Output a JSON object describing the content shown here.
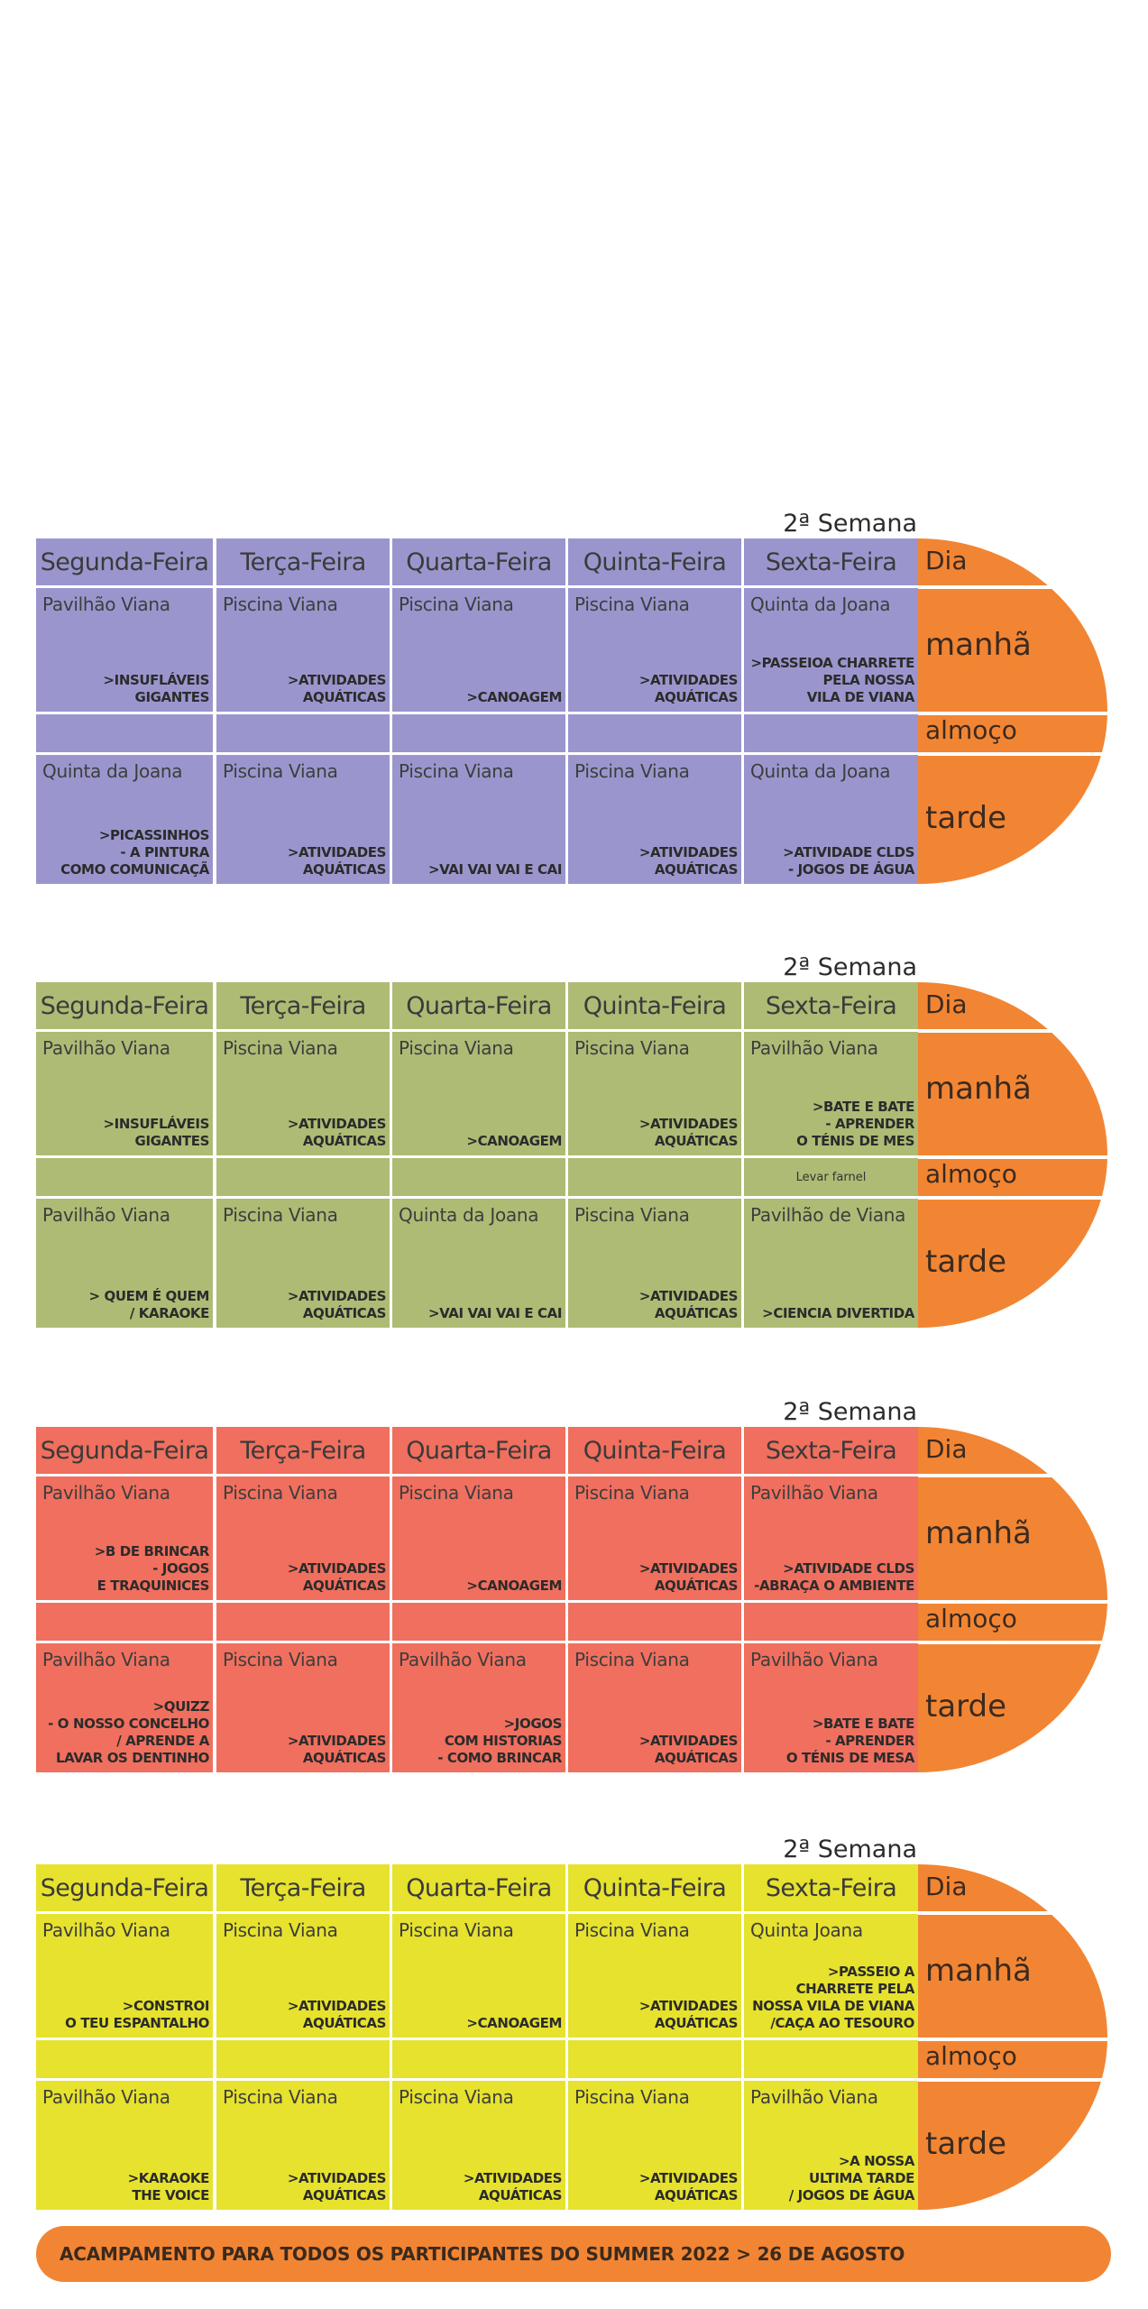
{
  "colors": {
    "orange": "#f28533",
    "week_colors": [
      "#9a96cd",
      "#adbb75",
      "#f06f5e",
      "#e6e22e"
    ]
  },
  "day_headers": [
    "Segunda-Feira",
    "Terça-Feira",
    "Quarta-Feira",
    "Quinta-Feira",
    "Sexta-Feira"
  ],
  "periods": {
    "dia": "Dia",
    "manha": "manhã",
    "almoco": "almoço",
    "tarde": "tarde"
  },
  "weeks": [
    {
      "title": "2ª Semana",
      "morning": [
        {
          "loc": "Pavilhão Viana",
          "act": ">INSUFLÁVEIS\nGIGANTES"
        },
        {
          "loc": "Piscina Viana",
          "act": ">ATIVIDADES\nAQUÁTICAS"
        },
        {
          "loc": "Piscina Viana",
          "act": ">CANOAGEM"
        },
        {
          "loc": "Piscina Viana",
          "act": ">ATIVIDADES\nAQUÁTICAS"
        },
        {
          "loc": "Quinta da Joana",
          "act": ">PASSEIOA CHARRETE\nPELA NOSSA\nVILA DE VIANA"
        }
      ],
      "lunch": [
        "",
        "",
        "",
        "",
        ""
      ],
      "afternoon": [
        {
          "loc": "Quinta da Joana",
          "act": ">PICASSINHOS\n- A PINTURA\nCOMO COMUNICAÇÃ"
        },
        {
          "loc": "Piscina Viana",
          "act": ">ATIVIDADES\nAQUÁTICAS"
        },
        {
          "loc": "Piscina Viana",
          "act": ">VAI VAI VAI E CAI"
        },
        {
          "loc": "Piscina Viana",
          "act": ">ATIVIDADES\nAQUÁTICAS"
        },
        {
          "loc": "Quinta da Joana",
          "act": ">ATIVIDADE CLDS\n- JOGOS DE ÁGUA"
        }
      ]
    },
    {
      "title": "2ª Semana",
      "morning": [
        {
          "loc": "Pavilhão Viana",
          "act": ">INSUFLÁVEIS\nGIGANTES"
        },
        {
          "loc": "Piscina Viana",
          "act": ">ATIVIDADES\nAQUÁTICAS"
        },
        {
          "loc": "Piscina Viana",
          "act": ">CANOAGEM"
        },
        {
          "loc": "Piscina Viana",
          "act": ">ATIVIDADES\nAQUÁTICAS"
        },
        {
          "loc": "Pavilhão Viana",
          "act": ">BATE E BATE\n- APRENDER\nO TÉNIS DE MES"
        }
      ],
      "lunch": [
        "",
        "",
        "",
        "",
        "Levar farnel"
      ],
      "afternoon": [
        {
          "loc": "Pavilhão Viana",
          "act": "> QUEM É QUEM\n/ KARAOKE"
        },
        {
          "loc": "Piscina Viana",
          "act": ">ATIVIDADES\nAQUÁTICAS"
        },
        {
          "loc": "Quinta da Joana",
          "act": ">VAI VAI VAI E CAI"
        },
        {
          "loc": "Piscina Viana",
          "act": ">ATIVIDADES\nAQUÁTICAS"
        },
        {
          "loc": "Pavilhão de Viana",
          "act": ">CIENCIA DIVERTIDA"
        }
      ]
    },
    {
      "title": "2ª Semana",
      "morning": [
        {
          "loc": "Pavilhão Viana",
          "act": ">B DE BRINCAR\n- JOGOS\nE TRAQUINICES"
        },
        {
          "loc": "Piscina Viana",
          "act": ">ATIVIDADES\nAQUÁTICAS"
        },
        {
          "loc": "Piscina Viana",
          "act": ">CANOAGEM"
        },
        {
          "loc": "Piscina Viana",
          "act": ">ATIVIDADES\nAQUÁTICAS"
        },
        {
          "loc": "Pavilhão Viana",
          "act": ">ATIVIDADE CLDS\n-ABRAÇA O AMBIENTE"
        }
      ],
      "lunch": [
        "",
        "",
        "",
        "",
        ""
      ],
      "afternoon": [
        {
          "loc": "Pavilhão Viana",
          "act": ">QUIZZ\n- O NOSSO CONCELHO\n/ APRENDE A\nLAVAR OS DENTINHO"
        },
        {
          "loc": "Piscina Viana",
          "act": ">ATIVIDADES\nAQUÁTICAS"
        },
        {
          "loc": "Pavilhão Viana",
          "act": ">JOGOS\nCOM HISTORIAS\n- COMO BRINCAR"
        },
        {
          "loc": "Piscina Viana",
          "act": ">ATIVIDADES\nAQUÁTICAS"
        },
        {
          "loc": "Pavilhão Viana",
          "act": ">BATE E BATE\n- APRENDER\nO TÉNIS DE MESA"
        }
      ]
    },
    {
      "title": "2ª Semana",
      "morning": [
        {
          "loc": "Pavilhão Viana",
          "act": ">CONSTROI\nO TEU ESPANTALHO"
        },
        {
          "loc": "Piscina Viana",
          "act": ">ATIVIDADES\nAQUÁTICAS"
        },
        {
          "loc": "Piscina Viana",
          "act": ">CANOAGEM"
        },
        {
          "loc": "Piscina Viana",
          "act": ">ATIVIDADES\nAQUÁTICAS"
        },
        {
          "loc": "Quinta Joana",
          "act": ">PASSEIO A\nCHARRETE PELA\nNOSSA VILA DE VIANA\n/CAÇA AO TESOURO"
        }
      ],
      "lunch": [
        "",
        "",
        "",
        "",
        ""
      ],
      "afternoon": [
        {
          "loc": "Pavilhão Viana",
          "act": ">KARAOKE\nTHE VOICE"
        },
        {
          "loc": "Piscina Viana",
          "act": ">ATIVIDADES\nAQUÁTICAS"
        },
        {
          "loc": "Piscina Viana",
          "act": ">ATIVIDADES\nAQUÁTICAS"
        },
        {
          "loc": "Piscina Viana",
          "act": ">ATIVIDADES\nAQUÁTICAS"
        },
        {
          "loc": "Pavilhão Viana",
          "act": ">A NOSSA\nULTIMA TARDE\n/ JOGOS DE ÁGUA"
        }
      ]
    }
  ],
  "banner": "ACAMPAMENTO PARA TODOS OS PARTICIPANTES DO SUMMER 2022 > 26 DE AGOSTO"
}
